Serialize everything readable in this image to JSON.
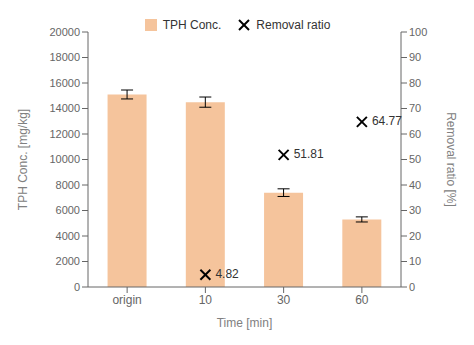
{
  "chart_data": {
    "type": "bar",
    "categories": [
      "origin",
      "10",
      "30",
      "60"
    ],
    "xlabel": "Time [min]",
    "ylabel": "TPH Conc. [mg/kg]",
    "y2label": "Removal ratio [%]",
    "ylim": [
      0,
      20000
    ],
    "yticks": [
      0,
      2000,
      4000,
      6000,
      8000,
      10000,
      12000,
      14000,
      16000,
      18000,
      20000
    ],
    "y2lim": [
      0,
      100
    ],
    "y2ticks": [
      0,
      10,
      20,
      30,
      40,
      50,
      60,
      70,
      80,
      90,
      100
    ],
    "grid": false,
    "legend": "top",
    "series": [
      {
        "name": "TPH Conc.",
        "type": "bar",
        "color": "#F5C49C",
        "values": [
          15100,
          14500,
          7400,
          5300
        ],
        "errors": [
          350,
          400,
          300,
          200
        ]
      },
      {
        "name": "Removal ratio",
        "type": "scatter",
        "axis": "y2",
        "color": "#000000",
        "marker": "x",
        "data_labels": true,
        "values": [
          null,
          4.82,
          51.81,
          64.77
        ]
      }
    ]
  }
}
